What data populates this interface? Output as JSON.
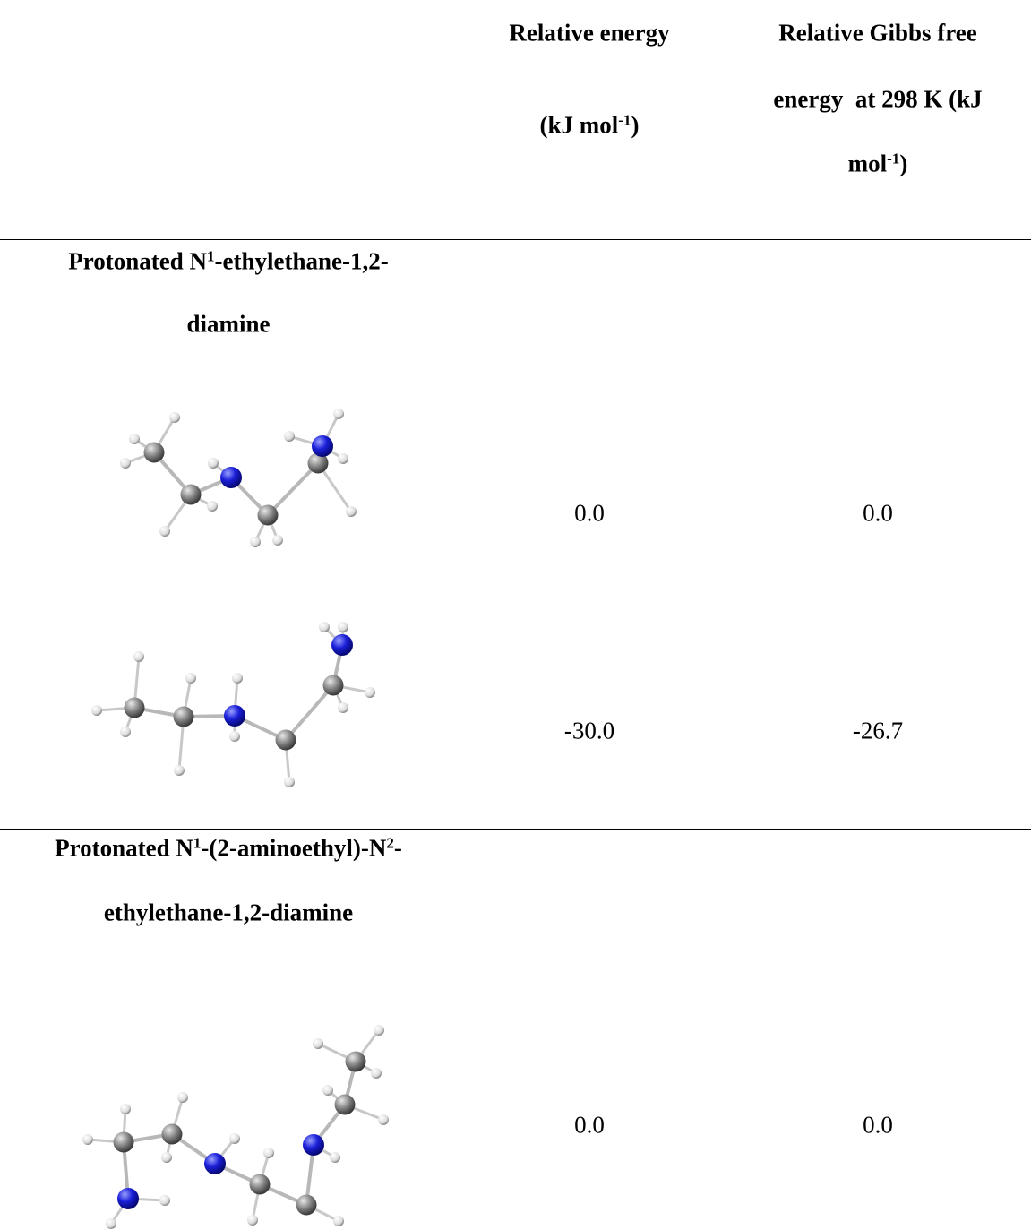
{
  "header": {
    "columns": [
      {
        "lines": [
          [
            {
              "text": "Relative energy"
            }
          ],
          [
            {
              "text": "(kJ mol"
            },
            {
              "text": "-1",
              "sup": true
            },
            {
              "text": ")"
            }
          ]
        ]
      },
      {
        "lines": [
          [
            {
              "text": "Relative Gibbs free"
            }
          ],
          [
            {
              "text": "energy  at 298 K (kJ"
            }
          ],
          [
            {
              "text": "mol"
            },
            {
              "text": "-1",
              "sup": true
            },
            {
              "text": ")"
            }
          ]
        ]
      }
    ]
  },
  "sections": [
    {
      "title_lines": [
        [
          {
            "text": "Protonated N"
          },
          {
            "text": "1",
            "sup": true
          },
          {
            "text": "-ethylethane-1,2-"
          }
        ],
        [
          {
            "text": "diamine"
          }
        ]
      ],
      "rows": [
        {
          "energy": "0.0",
          "gibbs": "0.0"
        },
        {
          "energy": "-30.0",
          "gibbs": "-26.7"
        }
      ]
    },
    {
      "title_lines": [
        [
          {
            "text": "Protonated N"
          },
          {
            "text": "1",
            "sup": true
          },
          {
            "text": "-(2-aminoethyl)-N"
          },
          {
            "text": "2",
            "sup": true
          },
          {
            "text": "-"
          }
        ],
        [
          {
            "text": "ethylethane-1,2-diamine"
          }
        ]
      ],
      "rows": [
        {
          "energy": "0.0",
          "gibbs": "0.0"
        }
      ]
    }
  ]
}
